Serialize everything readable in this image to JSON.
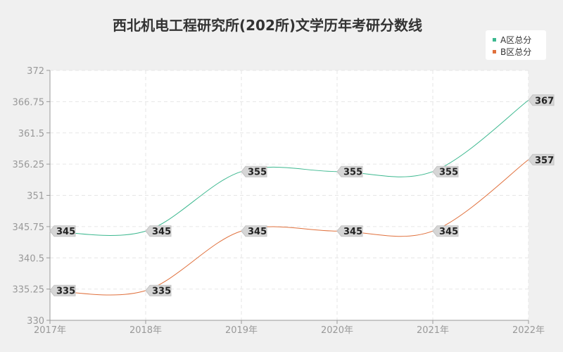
{
  "chart_data": {
    "type": "line",
    "title": "西北机电工程研究所(202所)文学历年考研分数线",
    "categories": [
      "2017年",
      "2018年",
      "2019年",
      "2020年",
      "2021年",
      "2022年"
    ],
    "series": [
      {
        "name": "A区总分",
        "color": "#3cb88f",
        "values": [
          345,
          345,
          355,
          355,
          355,
          367
        ]
      },
      {
        "name": "B区总分",
        "color": "#e0703c",
        "values": [
          335,
          335,
          345,
          345,
          345,
          357
        ]
      }
    ],
    "ylim": [
      330,
      372
    ],
    "yticks": [
      "330",
      "335.25",
      "340.5",
      "345.75",
      "351",
      "356.25",
      "361.5",
      "366.75",
      "372"
    ],
    "grid": true,
    "legend": "top-right",
    "xlabel": "",
    "ylabel": ""
  }
}
